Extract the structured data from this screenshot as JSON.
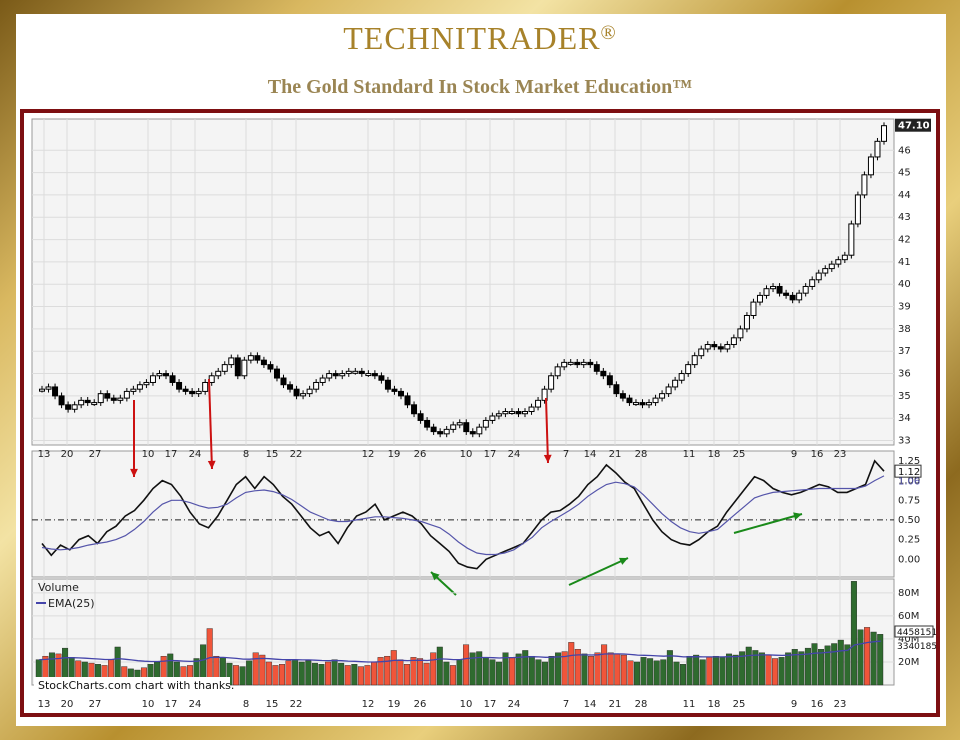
{
  "brand": {
    "name": "TECHNITRADER",
    "mark": "®",
    "tagline": "The Gold Standard In Stock Market Education™"
  },
  "chart_data": {
    "type": "candlestick",
    "price_panel": {
      "ylim": [
        32.8,
        47.4
      ],
      "yticks": [
        33,
        34,
        35,
        36,
        37,
        38,
        39,
        40,
        41,
        42,
        43,
        44,
        45,
        46
      ],
      "last_price_label": "47.10",
      "close": [
        35.3,
        35.4,
        35.0,
        34.6,
        34.4,
        34.6,
        34.8,
        34.7,
        34.7,
        35.1,
        34.9,
        34.8,
        34.9,
        35.2,
        35.3,
        35.5,
        35.6,
        35.9,
        36.0,
        35.9,
        35.6,
        35.3,
        35.2,
        35.1,
        35.2,
        35.6,
        35.9,
        36.1,
        36.4,
        36.7,
        35.9,
        36.6,
        36.8,
        36.6,
        36.4,
        36.2,
        35.8,
        35.5,
        35.3,
        35.0,
        35.1,
        35.3,
        35.6,
        35.8,
        36.0,
        35.9,
        36.0,
        36.1,
        36.1,
        36.0,
        36.0,
        35.9,
        35.7,
        35.3,
        35.2,
        35.0,
        34.6,
        34.2,
        33.9,
        33.6,
        33.4,
        33.3,
        33.5,
        33.7,
        33.8,
        33.4,
        33.3,
        33.6,
        33.9,
        34.1,
        34.2,
        34.3,
        34.3,
        34.2,
        34.3,
        34.5,
        34.8,
        35.3,
        35.9,
        36.3,
        36.5,
        36.5,
        36.4,
        36.5,
        36.4,
        36.1,
        35.9,
        35.5,
        35.1,
        34.9,
        34.7,
        34.7,
        34.6,
        34.7,
        34.9,
        35.1,
        35.4,
        35.7,
        36.0,
        36.4,
        36.8,
        37.1,
        37.3,
        37.2,
        37.1,
        37.3,
        37.6,
        38.0,
        38.6,
        39.2,
        39.5,
        39.8,
        39.9,
        39.6,
        39.5,
        39.3,
        39.6,
        39.9,
        40.2,
        40.5,
        40.7,
        40.9,
        41.1,
        41.3,
        42.7,
        44.0,
        44.9,
        45.7,
        46.4,
        47.1
      ]
    },
    "x_ticks": [
      "13",
      "20",
      "27",
      "10",
      "17",
      "24",
      "8",
      "15",
      "22",
      "12",
      "19",
      "26",
      "10",
      "17",
      "24",
      "7",
      "14",
      "21",
      "28",
      "11",
      "18",
      "25",
      "9",
      "16",
      "23"
    ],
    "indicator_panel": {
      "ylim": [
        -0.2,
        1.3
      ],
      "yticks": [
        "0.00",
        "0.25",
        "0.50",
        "0.75",
        "1.00",
        "1.25"
      ],
      "reference_line": 0.5,
      "current_values": [
        "1.12",
        "1.06"
      ],
      "series": [
        {
          "values": [
            0.2,
            0.05,
            0.18,
            0.12,
            0.25,
            0.3,
            0.2,
            0.35,
            0.42,
            0.55,
            0.62,
            0.75,
            0.9,
            1.0,
            0.95,
            0.8,
            0.6,
            0.45,
            0.4,
            0.55,
            0.75,
            0.95,
            1.05,
            0.9,
            1.05,
            0.95,
            0.8,
            0.7,
            0.55,
            0.4,
            0.3,
            0.35,
            0.2,
            0.4,
            0.55,
            0.6,
            0.7,
            0.5,
            0.55,
            0.6,
            0.55,
            0.45,
            0.3,
            0.2,
            0.1,
            -0.05,
            -0.1,
            -0.12,
            0.0,
            0.05,
            0.1,
            0.15,
            0.2,
            0.35,
            0.5,
            0.6,
            0.62,
            0.7,
            0.8,
            0.95,
            1.05,
            1.2,
            1.1,
            0.98,
            0.9,
            0.7,
            0.5,
            0.35,
            0.25,
            0.2,
            0.18,
            0.25,
            0.35,
            0.42,
            0.6,
            0.75,
            0.9,
            1.05,
            1.0,
            0.9,
            0.85,
            0.82,
            0.85,
            0.9,
            0.95,
            0.92,
            0.85,
            0.85,
            0.9,
            0.95,
            1.25,
            1.12
          ]
        },
        {
          "values": [
            0.15,
            0.13,
            0.12,
            0.13,
            0.15,
            0.18,
            0.2,
            0.22,
            0.25,
            0.3,
            0.38,
            0.48,
            0.6,
            0.7,
            0.75,
            0.75,
            0.72,
            0.68,
            0.65,
            0.66,
            0.7,
            0.78,
            0.85,
            0.87,
            0.88,
            0.86,
            0.82,
            0.76,
            0.68,
            0.6,
            0.55,
            0.5,
            0.48,
            0.48,
            0.5,
            0.52,
            0.54,
            0.54,
            0.53,
            0.52,
            0.5,
            0.48,
            0.44,
            0.4,
            0.32,
            0.22,
            0.14,
            0.08,
            0.06,
            0.06,
            0.08,
            0.12,
            0.2,
            0.28,
            0.4,
            0.48,
            0.55,
            0.62,
            0.7,
            0.8,
            0.88,
            0.95,
            0.98,
            0.96,
            0.92,
            0.82,
            0.7,
            0.58,
            0.48,
            0.4,
            0.35,
            0.33,
            0.35,
            0.38,
            0.48,
            0.58,
            0.68,
            0.78,
            0.82,
            0.85,
            0.86,
            0.87,
            0.88,
            0.89,
            0.9,
            0.9,
            0.9,
            0.9,
            0.9,
            0.93,
            1.0,
            1.06
          ]
        }
      ]
    },
    "volume_panel": {
      "legend": [
        "Volume",
        "EMA(25)"
      ],
      "yticks": [
        "20M",
        "40M",
        "60M",
        "80M"
      ],
      "ymax_m": 92,
      "current_values": [
        "4458151",
        "3340185"
      ],
      "values_m": [
        22,
        25,
        28,
        27,
        32,
        24,
        21,
        20,
        19,
        18,
        17,
        22,
        33,
        16,
        14,
        13,
        15,
        18,
        20,
        25,
        27,
        20,
        16,
        17,
        23,
        35,
        49,
        25,
        24,
        19,
        17,
        16,
        21,
        28,
        26,
        20,
        17,
        18,
        21,
        22,
        20,
        21,
        19,
        18,
        20,
        22,
        19,
        17,
        18,
        16,
        17,
        20,
        24,
        25,
        30,
        22,
        18,
        24,
        23,
        19,
        28,
        33,
        20,
        17,
        22,
        35,
        28,
        29,
        24,
        22,
        20,
        28,
        24,
        27,
        30,
        25,
        22,
        20,
        25,
        28,
        29,
        37,
        31,
        27,
        25,
        28,
        35,
        28,
        27,
        26,
        21,
        20,
        24,
        23,
        21,
        22,
        30,
        20,
        18,
        25,
        26,
        22,
        24,
        25,
        24,
        27,
        26,
        29,
        33,
        30,
        28,
        26,
        23,
        24,
        28,
        31,
        29,
        32,
        36,
        31,
        34,
        36,
        39,
        35,
        90,
        48,
        50,
        46,
        44
      ],
      "up": [
        1,
        0,
        1,
        0,
        1,
        1,
        0,
        1,
        0,
        1,
        0,
        0,
        1,
        0,
        1,
        1,
        0,
        1,
        1,
        0,
        1,
        1,
        0,
        0,
        1,
        1,
        0,
        0,
        1,
        1,
        0,
        1,
        1,
        0,
        0,
        0,
        0,
        0,
        0,
        1,
        1,
        1,
        1,
        1,
        0,
        1,
        1,
        0,
        1,
        0,
        0,
        0,
        0,
        0,
        0,
        0,
        0,
        0,
        0,
        0,
        0,
        1,
        1,
        0,
        1,
        0,
        1,
        1,
        1,
        1,
        1,
        1,
        0,
        1,
        1,
        1,
        1,
        1,
        1,
        1,
        0,
        0,
        0,
        1,
        0,
        0,
        0,
        0,
        0,
        0,
        0,
        1,
        1,
        1,
        1,
        1,
        1,
        1,
        1,
        1,
        1,
        1,
        0,
        1,
        1,
        1,
        1,
        1,
        1,
        1,
        1,
        0,
        0,
        1,
        1,
        1,
        1,
        1,
        1,
        1,
        1,
        1,
        1,
        1,
        1,
        1,
        0,
        1,
        1
      ]
    },
    "credit": "StockCharts.com  chart with thanks."
  }
}
